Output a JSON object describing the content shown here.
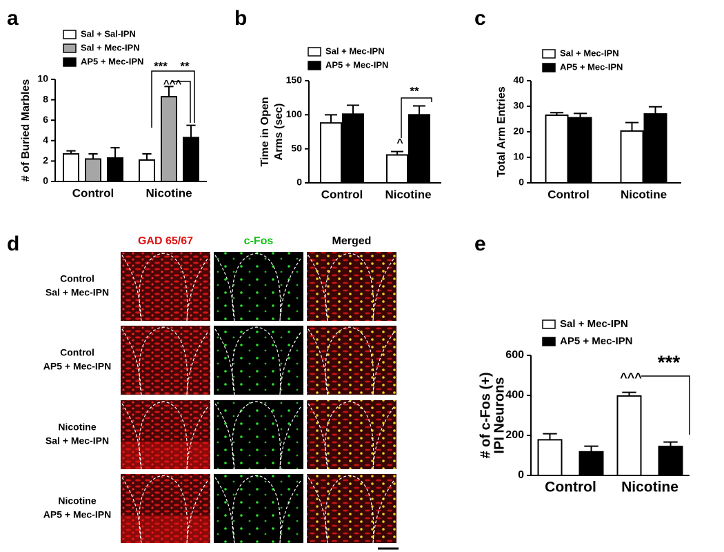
{
  "chart_data": [
    {
      "type": "bar",
      "panel": "a",
      "y_label": [
        "# of Buried Marbles"
      ],
      "categories": [
        "Control",
        "Nicotine"
      ],
      "series": [
        {
          "name": "Sal + Sal-IPN",
          "color": "#ffffff",
          "values": [
            2.7,
            2.1
          ],
          "errors": [
            0.3,
            0.6
          ]
        },
        {
          "name": "Sal + Mec-IPN",
          "color": "#a6a6a6",
          "values": [
            2.2,
            8.3
          ],
          "errors": [
            0.5,
            1.0
          ]
        },
        {
          "name": "AP5 + Mec-IPN",
          "color": "#000000",
          "values": [
            2.3,
            4.3
          ],
          "errors": [
            1.0,
            1.2
          ]
        }
      ],
      "ylim": [
        0,
        10
      ],
      "yticks": [
        0,
        2,
        4,
        6,
        8,
        10
      ],
      "annotations": [
        "***",
        "**",
        "^^^"
      ]
    },
    {
      "type": "bar",
      "panel": "b",
      "y_label": [
        "Time in Open",
        "Arms (sec)"
      ],
      "categories": [
        "Control",
        "Nicotine"
      ],
      "series": [
        {
          "name": "Sal + Mec-IPN",
          "color": "#ffffff",
          "values": [
            88,
            41
          ],
          "errors": [
            12,
            5
          ]
        },
        {
          "name": "AP5 + Mec-IPN",
          "color": "#000000",
          "values": [
            101,
            100
          ],
          "errors": [
            13,
            13
          ]
        }
      ],
      "ylim": [
        0,
        150
      ],
      "yticks": [
        0,
        50,
        100,
        150
      ],
      "annotations": [
        "^",
        "**"
      ]
    },
    {
      "type": "bar",
      "panel": "c",
      "y_label": [
        "Total Arm Entries"
      ],
      "categories": [
        "Control",
        "Nicotine"
      ],
      "series": [
        {
          "name": "Sal + Mec-IPN",
          "color": "#ffffff",
          "values": [
            26.5,
            20.3
          ],
          "errors": [
            1.0,
            3.3
          ]
        },
        {
          "name": "AP5 + Mec-IPN",
          "color": "#000000",
          "values": [
            25.5,
            27
          ],
          "errors": [
            1.7,
            2.8
          ]
        }
      ],
      "ylim": [
        0,
        40
      ],
      "yticks": [
        0,
        10,
        20,
        30,
        40
      ]
    },
    {
      "type": "bar",
      "panel": "e",
      "y_label": [
        "# of c-Fos (+)",
        "IPI Neurons"
      ],
      "categories": [
        "Control",
        "Nicotine"
      ],
      "series": [
        {
          "name": "Sal + Mec-IPN",
          "color": "#ffffff",
          "values": [
            178,
            397
          ],
          "errors": [
            30,
            18
          ]
        },
        {
          "name": "AP5 + Mec-IPN",
          "color": "#000000",
          "values": [
            118,
            145
          ],
          "errors": [
            28,
            22
          ]
        }
      ],
      "ylim": [
        0,
        600
      ],
      "yticks": [
        0,
        200,
        400,
        600
      ],
      "annotations": [
        "^^^",
        "***"
      ]
    }
  ],
  "panel_d": {
    "panel": "d",
    "columns": [
      "GAD 65/67",
      "c-Fos",
      "Merged"
    ],
    "rows": [
      [
        "Control",
        "Sal + Mec-IPN"
      ],
      [
        "Control",
        "AP5 + Mec-IPN"
      ],
      [
        "Nicotine",
        "Sal + Mec-IPN"
      ],
      [
        "Nicotine",
        "AP5 + Mec-IPN"
      ]
    ]
  }
}
